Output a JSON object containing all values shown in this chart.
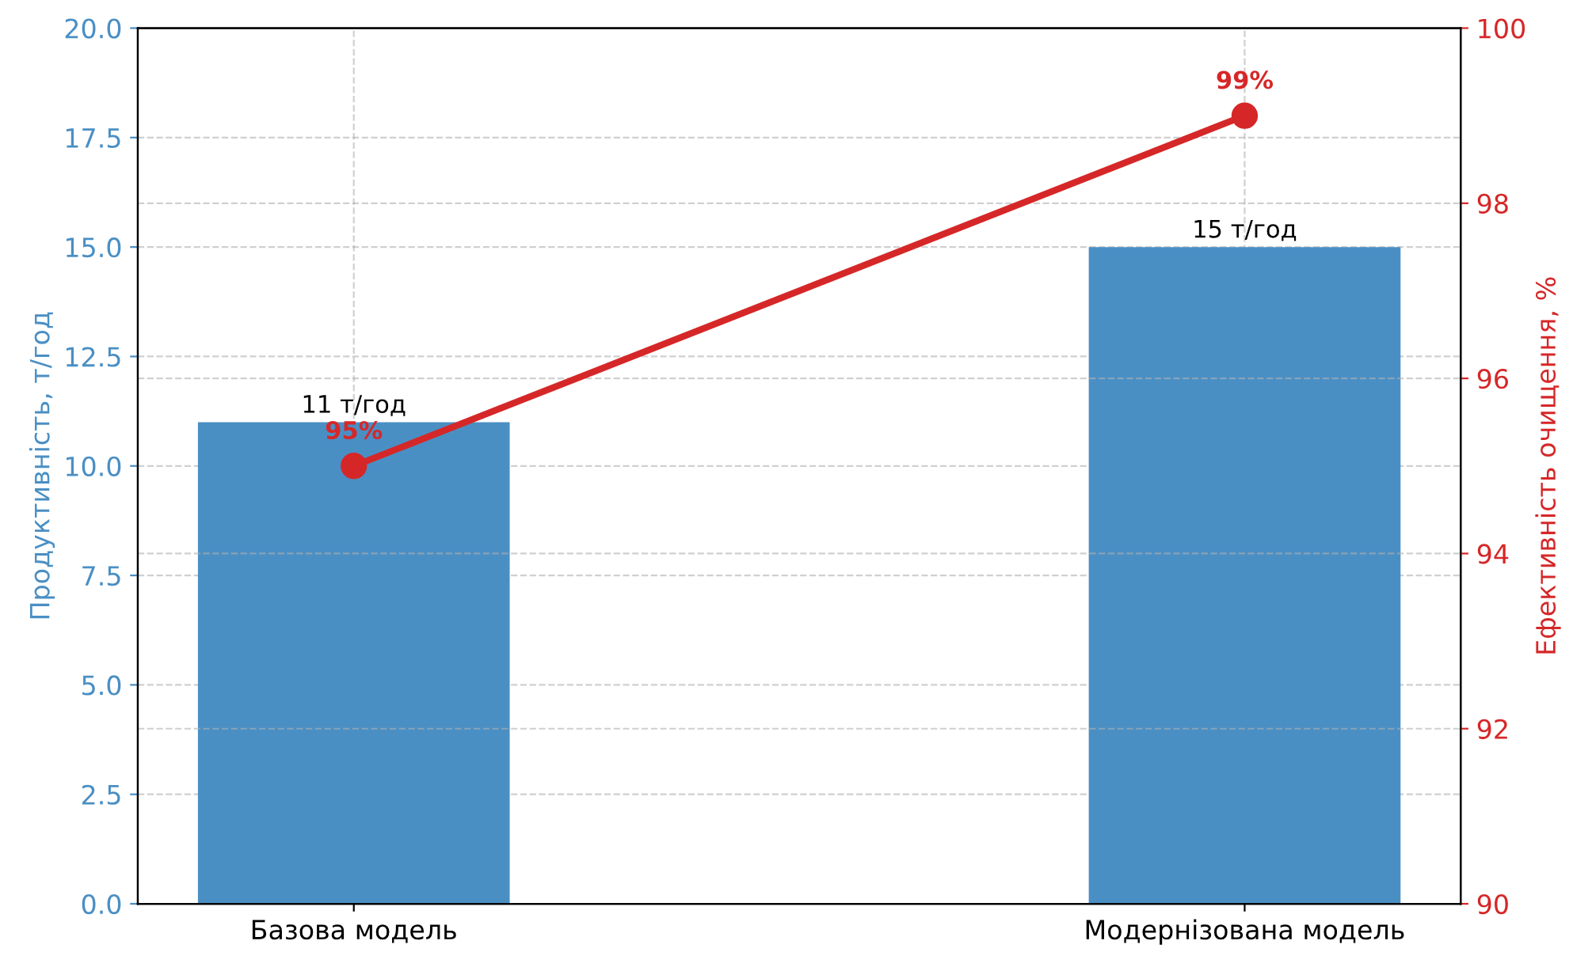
{
  "chart_data": {
    "type": "bar",
    "categories": [
      "Базова модель",
      "Модернізована модель"
    ],
    "ylabel": "Продуктивність, т/год",
    "y2label": "Ефективність очищення, %",
    "series": [
      {
        "color": "#4a8fc4",
        "values": [
          11,
          15
        ],
        "value_labels": [
          "11 т/год",
          "15 т/год"
        ]
      },
      {
        "type": "line",
        "axis": "y2",
        "color": "#d62728",
        "marker": "circle",
        "line_style": "solid",
        "values": [
          95,
          99
        ],
        "value_labels": [
          "95%",
          "99%"
        ]
      }
    ],
    "ylim": [
      0,
      20
    ],
    "yticks": [
      {
        "value": 0,
        "label": "0.0"
      },
      {
        "value": 2.5,
        "label": "2.5"
      },
      {
        "value": 5,
        "label": "5.0"
      },
      {
        "value": 7.5,
        "label": "7.5"
      },
      {
        "value": 10,
        "label": "10.0"
      },
      {
        "value": 12.5,
        "label": "12.5"
      },
      {
        "value": 15,
        "label": "15.0"
      },
      {
        "value": 17.5,
        "label": "17.5"
      },
      {
        "value": 20,
        "label": "20.0"
      }
    ],
    "y2lim": [
      90,
      100
    ],
    "y2ticks": [
      90,
      92,
      94,
      96,
      98,
      100
    ],
    "grid": true
  }
}
